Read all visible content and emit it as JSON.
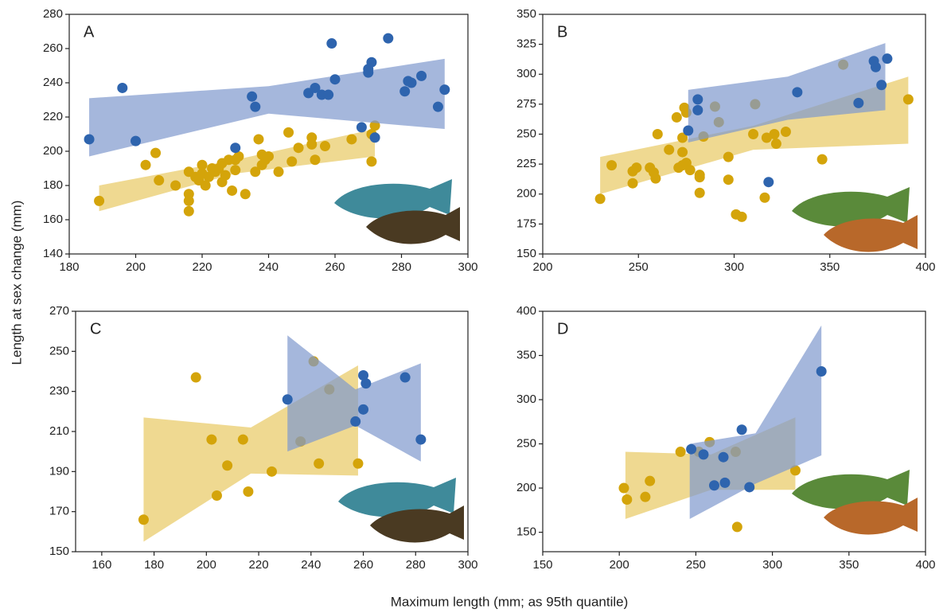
{
  "ylabel": "Length at sex change (mm)",
  "xlabel": "Maximum length (mm; as 95th quantile)",
  "chart_data": [
    {
      "type": "scatter",
      "label": "A",
      "xlim": [
        180,
        300
      ],
      "ylim": [
        140,
        280
      ],
      "xticks": [
        180,
        200,
        220,
        240,
        260,
        280,
        300
      ],
      "yticks": [
        140,
        160,
        180,
        200,
        220,
        240,
        260,
        280
      ],
      "series": [
        {
          "color": "#d4a40a",
          "band_color": "#e8c962",
          "x": [
            189,
            203,
            206,
            207,
            212,
            216,
            216,
            216,
            216,
            218,
            219,
            220,
            220,
            221,
            222,
            223,
            224,
            225,
            226,
            226,
            227,
            228,
            229,
            230,
            230,
            231,
            233,
            236,
            237,
            238,
            238,
            239,
            240,
            243,
            246,
            247,
            249,
            253,
            253,
            254,
            257,
            265,
            271,
            272,
            271
          ],
          "values": [
            171,
            192,
            199,
            183,
            180,
            188,
            175,
            171,
            165,
            185,
            183,
            192,
            187,
            180,
            185,
            190,
            188,
            190,
            193,
            182,
            186,
            195,
            177,
            189,
            195,
            197,
            175,
            188,
            207,
            192,
            198,
            195,
            197,
            188,
            211,
            194,
            202,
            204,
            208,
            195,
            203,
            207,
            194,
            215,
            210
          ],
          "band": {
            "x": [
              189,
              230,
              272
            ],
            "lower": [
              165,
              187,
              197
            ],
            "upper": [
              180,
              195,
              213
            ]
          }
        },
        {
          "color": "#2e64ae",
          "band_color": "#7f99cd",
          "x": [
            186,
            196,
            200,
            230,
            235,
            236,
            252,
            254,
            256,
            258,
            259,
            260,
            268,
            270,
            270,
            271,
            272,
            276,
            281,
            282,
            283,
            286,
            291,
            293
          ],
          "values": [
            207,
            237,
            206,
            202,
            232,
            226,
            234,
            237,
            233,
            233,
            263,
            242,
            214,
            246,
            248,
            252,
            208,
            266,
            235,
            241,
            240,
            244,
            226,
            236
          ],
          "band": {
            "x": [
              186,
              240,
              293
            ],
            "lower": [
              197,
              222,
              213
            ],
            "upper": [
              231,
              238,
              254
            ]
          }
        }
      ]
    },
    {
      "type": "scatter",
      "label": "B",
      "xlim": [
        200,
        400
      ],
      "ylim": [
        150,
        350
      ],
      "xticks": [
        200,
        250,
        300,
        350,
        400
      ],
      "yticks": [
        150,
        175,
        200,
        225,
        250,
        275,
        300,
        325,
        350
      ],
      "series": [
        {
          "color": "#d4a40a",
          "band_color": "#e8c962",
          "x": [
            230,
            236,
            247,
            247,
            249,
            256,
            258,
            259,
            260,
            266,
            270,
            271,
            273,
            273,
            273,
            274,
            275,
            275,
            277,
            282,
            282,
            282,
            284,
            290,
            292,
            297,
            297,
            301,
            304,
            311,
            310,
            316,
            317,
            321,
            322,
            327,
            346,
            357,
            391
          ],
          "values": [
            196,
            224,
            219,
            209,
            222,
            222,
            218,
            213,
            250,
            237,
            264,
            222,
            224,
            247,
            235,
            272,
            268,
            226,
            220,
            216,
            201,
            214,
            248,
            273,
            260,
            231,
            212,
            183,
            181,
            275,
            250,
            197,
            247,
            250,
            242,
            252,
            229,
            308,
            279
          ],
          "band": {
            "x": [
              230,
              310,
              391
            ],
            "lower": [
              200,
              237,
              242
            ],
            "upper": [
              231,
              257,
              298
            ]
          }
        },
        {
          "color": "#2e64ae",
          "band_color": "#7f99cd",
          "x": [
            276,
            281,
            281,
            318,
            333,
            365,
            373,
            374,
            377,
            380
          ],
          "values": [
            253,
            279,
            270,
            210,
            285,
            276,
            311,
            306,
            291,
            313
          ],
          "band": {
            "x": [
              276,
              328,
              379
            ],
            "lower": [
              243,
              262,
              270
            ],
            "upper": [
              287,
              298,
              326
            ]
          }
        }
      ]
    },
    {
      "type": "scatter",
      "label": "C",
      "xlim": [
        150,
        300
      ],
      "ylim": [
        150,
        270
      ],
      "xticks": [
        160,
        180,
        200,
        220,
        240,
        260,
        280,
        300
      ],
      "yticks": [
        150,
        170,
        190,
        210,
        230,
        250,
        270
      ],
      "series": [
        {
          "color": "#d4a40a",
          "band_color": "#e8c962",
          "x": [
            176,
            196,
            202,
            204,
            208,
            214,
            216,
            225,
            236,
            241,
            243,
            247,
            258
          ],
          "values": [
            166,
            237,
            206,
            178,
            193,
            206,
            180,
            190,
            205,
            245,
            194,
            231,
            194
          ],
          "band": {
            "x": [
              176,
              217,
              258
            ],
            "lower": [
              155,
              189,
              188
            ],
            "upper": [
              217,
              212,
              243
            ]
          }
        },
        {
          "color": "#2e64ae",
          "band_color": "#7f99cd",
          "x": [
            231,
            260,
            261,
            260,
            276,
            282,
            257
          ],
          "values": [
            226,
            238,
            234,
            221,
            237,
            206,
            215
          ],
          "band": {
            "x": [
              231,
              257,
              282
            ],
            "lower": [
              200,
              213,
              195
            ],
            "upper": [
              258,
              231,
              244
            ]
          }
        }
      ]
    },
    {
      "type": "scatter",
      "label": "D",
      "xlim": [
        150,
        400
      ],
      "ylim": [
        128,
        400
      ],
      "xticks": [
        150,
        200,
        250,
        300,
        350,
        400
      ],
      "yticks": [
        150,
        200,
        250,
        300,
        350,
        400
      ],
      "series": [
        {
          "color": "#d4a40a",
          "band_color": "#e8c962",
          "x": [
            203,
            205,
            217,
            220,
            240,
            252,
            259,
            276,
            277,
            315
          ],
          "values": [
            200,
            187,
            190,
            208,
            241,
            241,
            252,
            241,
            156,
            220
          ],
          "band": {
            "x": [
              204,
              260,
              315
            ],
            "lower": [
              165,
              198,
              198
            ],
            "upper": [
              241,
              238,
              280
            ]
          }
        },
        {
          "color": "#2e64ae",
          "band_color": "#7f99cd",
          "x": [
            247,
            255,
            262,
            268,
            269,
            280,
            285,
            332
          ],
          "values": [
            244,
            238,
            203,
            235,
            206,
            266,
            201,
            332
          ],
          "band": {
            "x": [
              246,
              289,
              332
            ],
            "lower": [
              165,
              205,
              237
            ],
            "upper": [
              250,
              262,
              384
            ]
          }
        }
      ]
    }
  ]
}
